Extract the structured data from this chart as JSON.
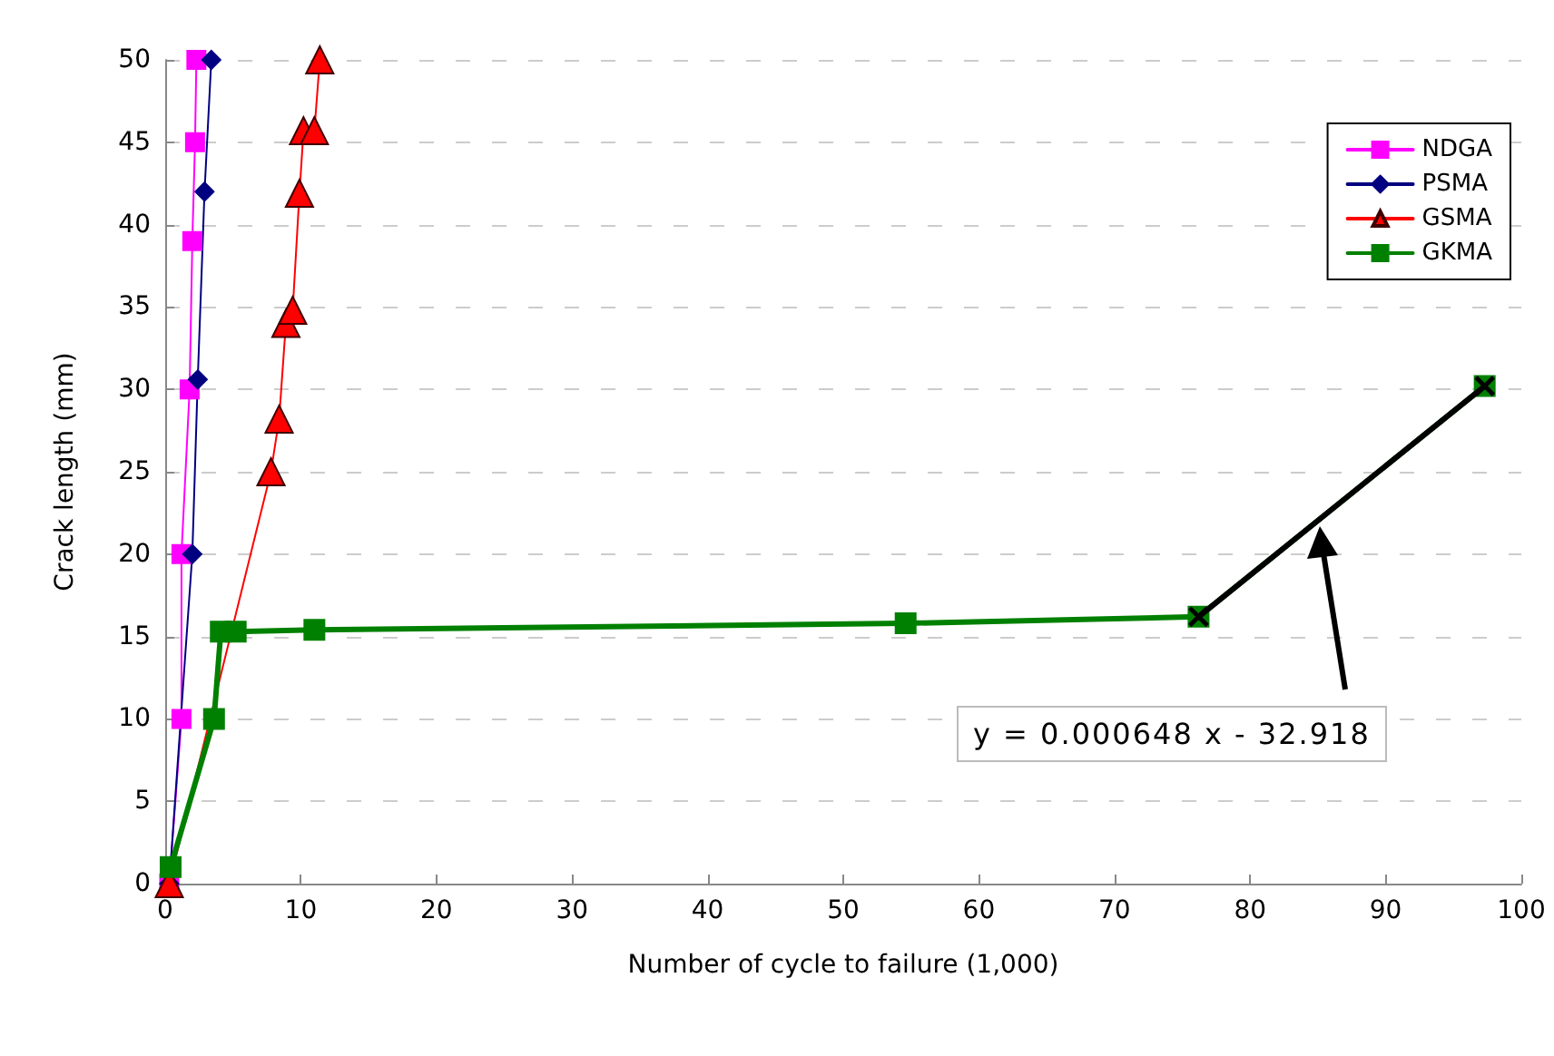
{
  "chart_data": {
    "type": "line",
    "xlabel": "Number of cycle to failure (1,000)",
    "ylabel": "Crack length (mm)",
    "xlim": [
      0,
      100
    ],
    "xticks": [
      0,
      10,
      20,
      30,
      40,
      50,
      60,
      70,
      80,
      90,
      100
    ],
    "ylim": [
      0,
      50
    ],
    "yticks": [
      0,
      5,
      10,
      15,
      20,
      25,
      30,
      35,
      40,
      45,
      50
    ],
    "grid": "y",
    "legend": "top right",
    "annotations": [
      "y = 0.000648 x - 32.918"
    ],
    "series": [
      {
        "name": "NDGA",
        "color": "#ff00ff",
        "marker": "square",
        "x": [
          0.3,
          1.2,
          1.2,
          1.8,
          2.0,
          2.2,
          2.3
        ],
        "values": [
          0,
          10,
          20,
          30,
          39,
          45,
          50
        ]
      },
      {
        "name": "PSMA",
        "color": "#000080",
        "marker": "diamond",
        "x": [
          0.3,
          2.0,
          2.4,
          2.9,
          3.4
        ],
        "values": [
          0,
          20,
          30.6,
          42,
          50
        ]
      },
      {
        "name": "GSMA",
        "color": "#ff0000",
        "marker": "triangle",
        "x": [
          0.3,
          7.8,
          8.4,
          8.9,
          9.4,
          9.9,
          10.2,
          11.0,
          11.4
        ],
        "values": [
          0,
          25,
          28.2,
          34,
          34.8,
          41.9,
          45.7,
          45.7,
          50
        ]
      },
      {
        "name": "GKMA",
        "color": "#008000",
        "marker": "square",
        "x": [
          0.4,
          3.6,
          4.1,
          5.2,
          11.0,
          54.6,
          76.2,
          97.3
        ],
        "values": [
          1,
          10,
          15.3,
          15.3,
          15.4,
          15.8,
          16.2,
          30.2
        ]
      },
      {
        "color": "#000000",
        "marker": "cross",
        "x": [
          76.2,
          97.3
        ],
        "values": [
          16.2,
          30.2
        ]
      }
    ]
  }
}
